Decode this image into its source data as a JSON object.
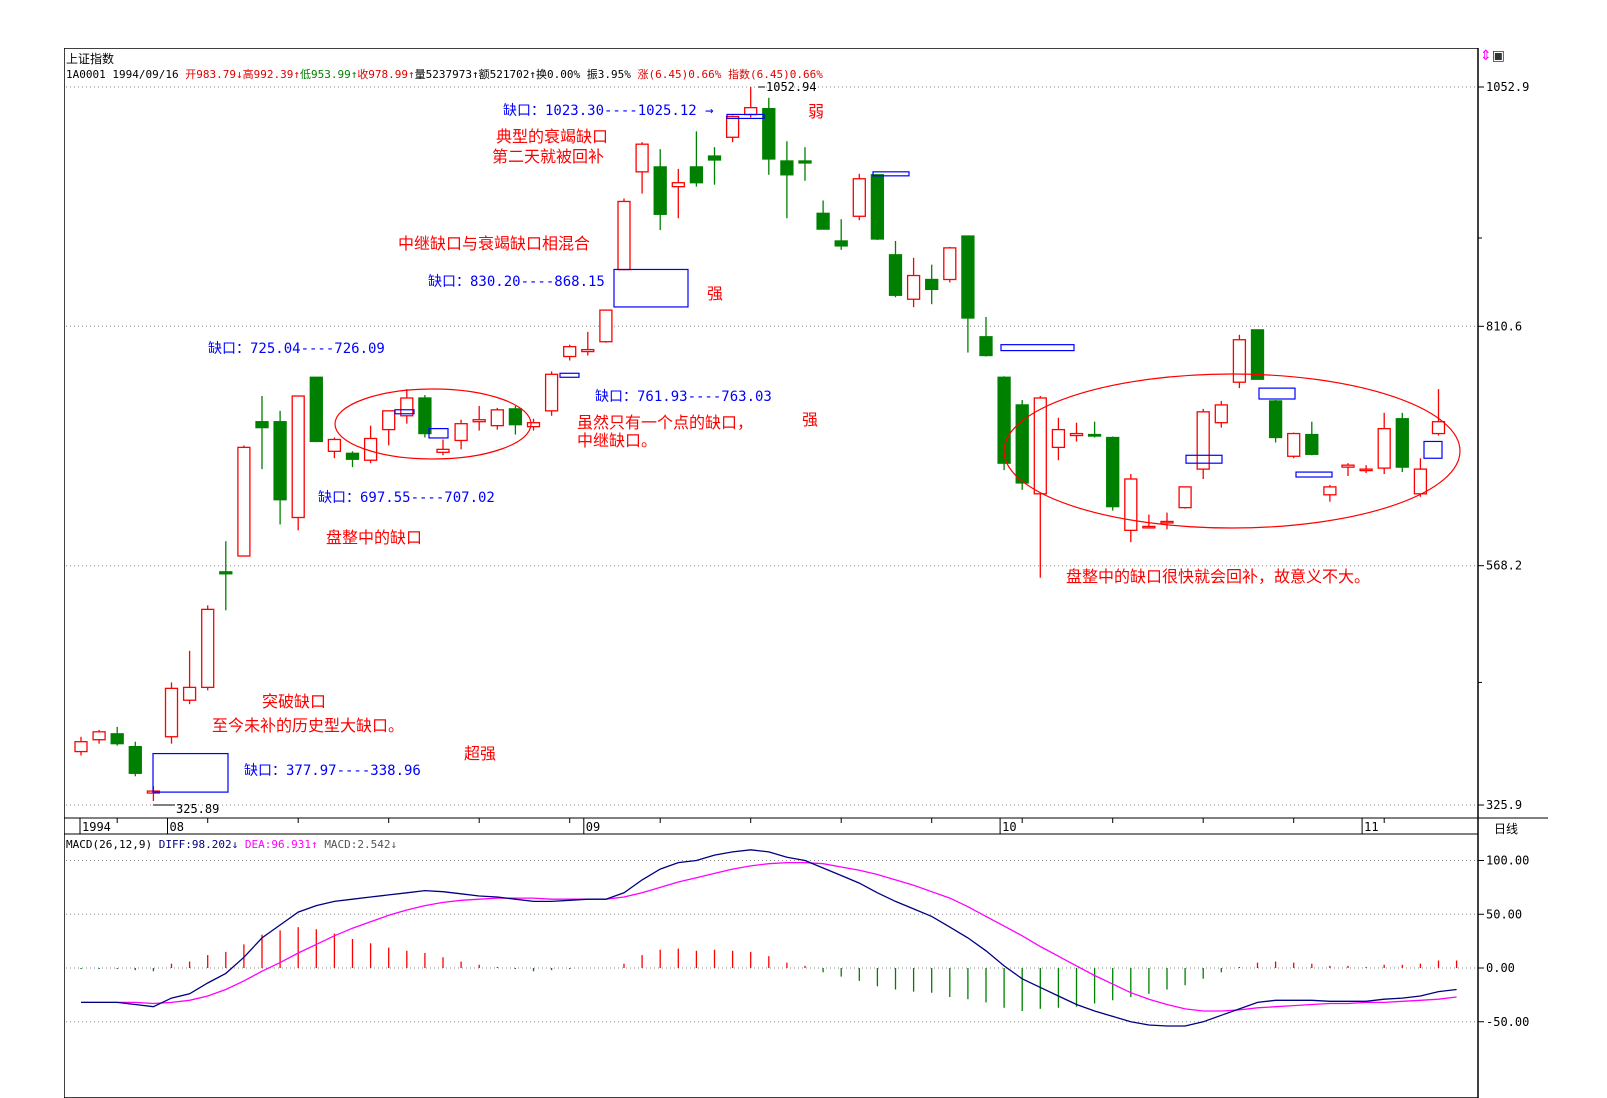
{
  "header": {
    "title": "上证指数",
    "code": "1A0001",
    "date": "1994/09/16",
    "open": "开983.79↓",
    "high": "高992.39↑",
    "low": "低953.99↑",
    "close": "收978.99↑",
    "volume": "量5237973↑",
    "amount": "额521702↑",
    "turnover": "换0.00%",
    "amplitude": "振3.95%",
    "change": "涨(6.45)0.66%",
    "index_change": "指数(6.45)0.66%"
  },
  "macd_header": {
    "label": "MACD(26,12,9)",
    "diff": "DIFF:98.202↓",
    "dea": "DEA:96.931↑",
    "macd": "MACD:2.542↓"
  },
  "toolbar": {
    "period": "日线",
    "icons": [
      "arrows-icon",
      "window-icon"
    ]
  },
  "colors": {
    "up": "#ff0000",
    "down": "#008000",
    "gap_box": "#0000ff",
    "diff_line": "#000080",
    "dea_line": "#ff00ff",
    "annotation": "#ff0000",
    "gap_label": "#0000ff"
  },
  "chart_data": [
    {
      "type": "candlestick",
      "title": "上证指数",
      "y_axis_ticks": [
        "1052.9",
        "810.6",
        "568.2",
        "325.9"
      ],
      "y_tick_values": [
        1052.9,
        810.6,
        568.2,
        325.9
      ],
      "ylim": [
        310,
        1070
      ],
      "x_axis_ticks": [
        "1994",
        "08",
        "09",
        "10",
        "11"
      ],
      "x_tick_index": [
        0,
        5,
        28,
        51,
        71
      ],
      "grid": "dotted horizontal",
      "candles": [
        {
          "o": 380,
          "h": 395,
          "l": 376,
          "c": 390
        },
        {
          "o": 392,
          "h": 402,
          "l": 388,
          "c": 400
        },
        {
          "o": 398,
          "h": 405,
          "l": 386,
          "c": 388
        },
        {
          "o": 385,
          "h": 390,
          "l": 355,
          "c": 358
        },
        {
          "o": 338,
          "h": 345,
          "l": 330,
          "c": 340
        },
        {
          "o": 395,
          "h": 450,
          "l": 388,
          "c": 444
        },
        {
          "o": 432,
          "h": 482,
          "l": 428,
          "c": 445
        },
        {
          "o": 445,
          "h": 528,
          "l": 442,
          "c": 524
        },
        {
          "o": 562,
          "h": 593,
          "l": 523,
          "c": 560
        },
        {
          "o": 578,
          "h": 690,
          "l": 578,
          "c": 688
        },
        {
          "o": 714,
          "h": 740,
          "l": 666,
          "c": 708
        },
        {
          "o": 714,
          "h": 725,
          "l": 610,
          "c": 635
        },
        {
          "o": 617,
          "h": 739,
          "l": 604,
          "c": 740
        },
        {
          "o": 759,
          "h": 759,
          "l": 695,
          "c": 694
        },
        {
          "o": 684,
          "h": 698,
          "l": 677,
          "c": 696
        },
        {
          "o": 682,
          "h": 684,
          "l": 668,
          "c": 676
        },
        {
          "o": 675,
          "h": 710,
          "l": 672,
          "c": 697
        },
        {
          "o": 706,
          "h": 720,
          "l": 690,
          "c": 725
        },
        {
          "o": 720,
          "h": 747,
          "l": 712,
          "c": 738
        },
        {
          "o": 738,
          "h": 741,
          "l": 698,
          "c": 702
        },
        {
          "o": 683,
          "h": 696,
          "l": 680,
          "c": 686
        },
        {
          "o": 695,
          "h": 716,
          "l": 686,
          "c": 712
        },
        {
          "o": 714,
          "h": 730,
          "l": 705,
          "c": 716
        },
        {
          "o": 710,
          "h": 728,
          "l": 706,
          "c": 726
        },
        {
          "o": 727,
          "h": 730,
          "l": 701,
          "c": 711
        },
        {
          "o": 709,
          "h": 717,
          "l": 705,
          "c": 713
        },
        {
          "o": 725,
          "h": 765,
          "l": 720,
          "c": 762
        },
        {
          "o": 780,
          "h": 792,
          "l": 776,
          "c": 790
        },
        {
          "o": 785,
          "h": 805,
          "l": 781,
          "c": 787
        },
        {
          "o": 795,
          "h": 827,
          "l": 794,
          "c": 827
        },
        {
          "o": 868,
          "h": 940,
          "l": 868,
          "c": 937
        },
        {
          "o": 967,
          "h": 997,
          "l": 945,
          "c": 995
        },
        {
          "o": 972,
          "h": 990,
          "l": 908,
          "c": 924
        },
        {
          "o": 952,
          "h": 970,
          "l": 920,
          "c": 956
        },
        {
          "o": 972,
          "h": 1008,
          "l": 952,
          "c": 956
        },
        {
          "o": 983,
          "h": 992,
          "l": 954,
          "c": 979
        },
        {
          "o": 1002,
          "h": 1024,
          "l": 997,
          "c": 1023
        },
        {
          "o": 1025,
          "h": 1053,
          "l": 1022,
          "c": 1032
        },
        {
          "o": 1031,
          "h": 1042,
          "l": 964,
          "c": 980
        },
        {
          "o": 978,
          "h": 998,
          "l": 920,
          "c": 964
        },
        {
          "o": 978,
          "h": 992,
          "l": 958,
          "c": 976
        },
        {
          "o": 925,
          "h": 938,
          "l": 910,
          "c": 909
        },
        {
          "o": 897,
          "h": 919,
          "l": 888,
          "c": 892
        },
        {
          "o": 922,
          "h": 965,
          "l": 918,
          "c": 960
        },
        {
          "o": 964,
          "h": 964,
          "l": 898,
          "c": 899
        },
        {
          "o": 883,
          "h": 897,
          "l": 840,
          "c": 842
        },
        {
          "o": 838,
          "h": 880,
          "l": 830,
          "c": 862
        },
        {
          "o": 858,
          "h": 873,
          "l": 833,
          "c": 848
        },
        {
          "o": 858,
          "h": 891,
          "l": 855,
          "c": 890
        },
        {
          "o": 902,
          "h": 902,
          "l": 784,
          "c": 819
        },
        {
          "o": 800,
          "h": 820,
          "l": 780,
          "c": 781
        },
        {
          "o": 759,
          "h": 760,
          "l": 665,
          "c": 672
        },
        {
          "o": 731,
          "h": 736,
          "l": 645,
          "c": 652
        },
        {
          "o": 641,
          "h": 740,
          "l": 556,
          "c": 738
        },
        {
          "o": 688,
          "h": 718,
          "l": 675,
          "c": 706
        },
        {
          "o": 700,
          "h": 713,
          "l": 694,
          "c": 702
        },
        {
          "o": 701,
          "h": 714,
          "l": 698,
          "c": 700
        },
        {
          "o": 698,
          "h": 699,
          "l": 624,
          "c": 628
        },
        {
          "o": 604,
          "h": 661,
          "l": 592,
          "c": 656
        },
        {
          "o": 607,
          "h": 620,
          "l": 606,
          "c": 608
        },
        {
          "o": 612,
          "h": 622,
          "l": 605,
          "c": 613
        },
        {
          "o": 627,
          "h": 648,
          "l": 626,
          "c": 648
        },
        {
          "o": 666,
          "h": 727,
          "l": 656,
          "c": 724
        },
        {
          "o": 713,
          "h": 735,
          "l": 708,
          "c": 731
        },
        {
          "o": 754,
          "h": 802,
          "l": 748,
          "c": 797
        },
        {
          "o": 807,
          "h": 807,
          "l": 762,
          "c": 757
        },
        {
          "o": 735,
          "h": 736,
          "l": 693,
          "c": 698
        },
        {
          "o": 679,
          "h": 703,
          "l": 677,
          "c": 702
        },
        {
          "o": 701,
          "h": 714,
          "l": 680,
          "c": 681
        },
        {
          "o": 640,
          "h": 650,
          "l": 633,
          "c": 648
        },
        {
          "o": 668,
          "h": 672,
          "l": 659,
          "c": 670
        },
        {
          "o": 665,
          "h": 670,
          "l": 662,
          "c": 666
        },
        {
          "o": 667,
          "h": 723,
          "l": 661,
          "c": 707
        },
        {
          "o": 717,
          "h": 723,
          "l": 663,
          "c": 668
        },
        {
          "o": 641,
          "h": 677,
          "l": 638,
          "c": 666
        },
        {
          "o": 702,
          "h": 747,
          "l": 700,
          "c": 714
        }
      ],
      "gaps": [
        {
          "low": 338.96,
          "high": 377.97,
          "label": "缺口：377.97----338.96"
        },
        {
          "low": 697.55,
          "high": 707.02,
          "label": "缺口：697.55----707.02"
        },
        {
          "low": 725.04,
          "high": 726.09,
          "label": "缺口：725.04----726.09"
        },
        {
          "low": 761.93,
          "high": 763.03,
          "label": "缺口：761.93----763.03"
        },
        {
          "low": 830.2,
          "high": 868.15,
          "label": "缺口：830.20----868.15"
        },
        {
          "low": 1023.3,
          "high": 1025.12,
          "label": "缺口：1023.30----1025.12 →"
        },
        {
          "low": 965.0,
          "high": 967.0,
          "label": ""
        },
        {
          "low": 786.0,
          "high": 792.0,
          "label": ""
        },
        {
          "low": 737.0,
          "high": 748.0,
          "label": ""
        },
        {
          "low": 658.0,
          "high": 663.0,
          "label": ""
        },
        {
          "low": 672.0,
          "high": 680.0,
          "label": ""
        },
        {
          "low": 677.0,
          "high": 694.0,
          "label": ""
        }
      ],
      "price_labels": [
        "1052.94",
        "325.89"
      ],
      "annotations": [
        "突破缺口",
        "至今未补的历史型大缺口。",
        "超强",
        "盘整中的缺口",
        "中继缺口与衰竭缺口相混合",
        "强",
        "典型的衰竭缺口",
        "第二天就被回补",
        "弱",
        "虽然只有一个点的缺口，",
        "中继缺口。",
        "强",
        "盘整中的缺口很快就会回补，故意义不大。"
      ]
    },
    {
      "type": "line",
      "title": "MACD(26,12,9)",
      "y_axis_ticks": [
        "100.00",
        "50.00",
        "0.00",
        "-50.00"
      ],
      "y_tick_values": [
        100,
        50,
        0,
        -50
      ],
      "ylim": [
        -80,
        115
      ],
      "series": [
        {
          "name": "DIFF",
          "values": [
            -32,
            -32,
            -32,
            -34,
            -36,
            -28,
            -24,
            -14,
            -5,
            10,
            28,
            40,
            52,
            58,
            62,
            64,
            66,
            68,
            70,
            72,
            71,
            69,
            67,
            66,
            64,
            62,
            62,
            63,
            64,
            64,
            70,
            82,
            92,
            98,
            100,
            105,
            108,
            110,
            108,
            103,
            100,
            93,
            86,
            79,
            70,
            62,
            55,
            48,
            38,
            28,
            16,
            2,
            -10,
            -18,
            -26,
            -34,
            -40,
            -45,
            -50,
            -53,
            -54,
            -54,
            -50,
            -44,
            -38,
            -32,
            -30,
            -30,
            -30,
            -31,
            -31,
            -31,
            -29,
            -28,
            -26,
            -22,
            -20
          ]
        },
        {
          "name": "DEA",
          "values": [
            -32,
            -32,
            -32,
            -32,
            -33,
            -32,
            -30,
            -26,
            -20,
            -12,
            -3,
            5,
            14,
            22,
            30,
            37,
            43,
            49,
            54,
            58,
            61,
            63,
            64,
            65,
            65,
            65,
            64,
            64,
            64,
            64,
            66,
            70,
            75,
            80,
            84,
            88,
            92,
            95,
            97,
            98,
            98,
            97,
            94,
            91,
            87,
            82,
            77,
            71,
            65,
            57,
            48,
            39,
            30,
            20,
            11,
            2,
            -7,
            -15,
            -23,
            -29,
            -34,
            -38,
            -40,
            -40,
            -39,
            -37,
            -36,
            -35,
            -34,
            -33,
            -33,
            -32,
            -32,
            -31,
            -30,
            -29,
            -27
          ]
        },
        {
          "name": "MACD",
          "values": [
            -1,
            -1,
            -1,
            -2,
            -3,
            4,
            6,
            12,
            15,
            22,
            31,
            35,
            38,
            36,
            32,
            27,
            23,
            19,
            16,
            14,
            10,
            6,
            3,
            1,
            -1,
            -3,
            -2,
            -1,
            0,
            0,
            4,
            12,
            17,
            18,
            16,
            17,
            16,
            15,
            11,
            5,
            2,
            -4,
            -8,
            -12,
            -17,
            -20,
            -22,
            -23,
            -27,
            -29,
            -32,
            -37,
            -40,
            -38,
            -37,
            -36,
            -33,
            -30,
            -27,
            -24,
            -20,
            -16,
            -10,
            -4,
            1,
            5,
            6,
            5,
            4,
            2,
            2,
            1,
            3,
            3,
            4,
            7,
            7
          ]
        }
      ]
    }
  ],
  "y_tick_labels": [
    "1052.9",
    "810.6",
    "568.2",
    "325.9"
  ],
  "x_tick_labels": [
    "1994",
    "08",
    "09",
    "10",
    "11"
  ],
  "macd_tick_labels": [
    "100.00",
    "50.00",
    "0.00",
    "-50.00"
  ]
}
